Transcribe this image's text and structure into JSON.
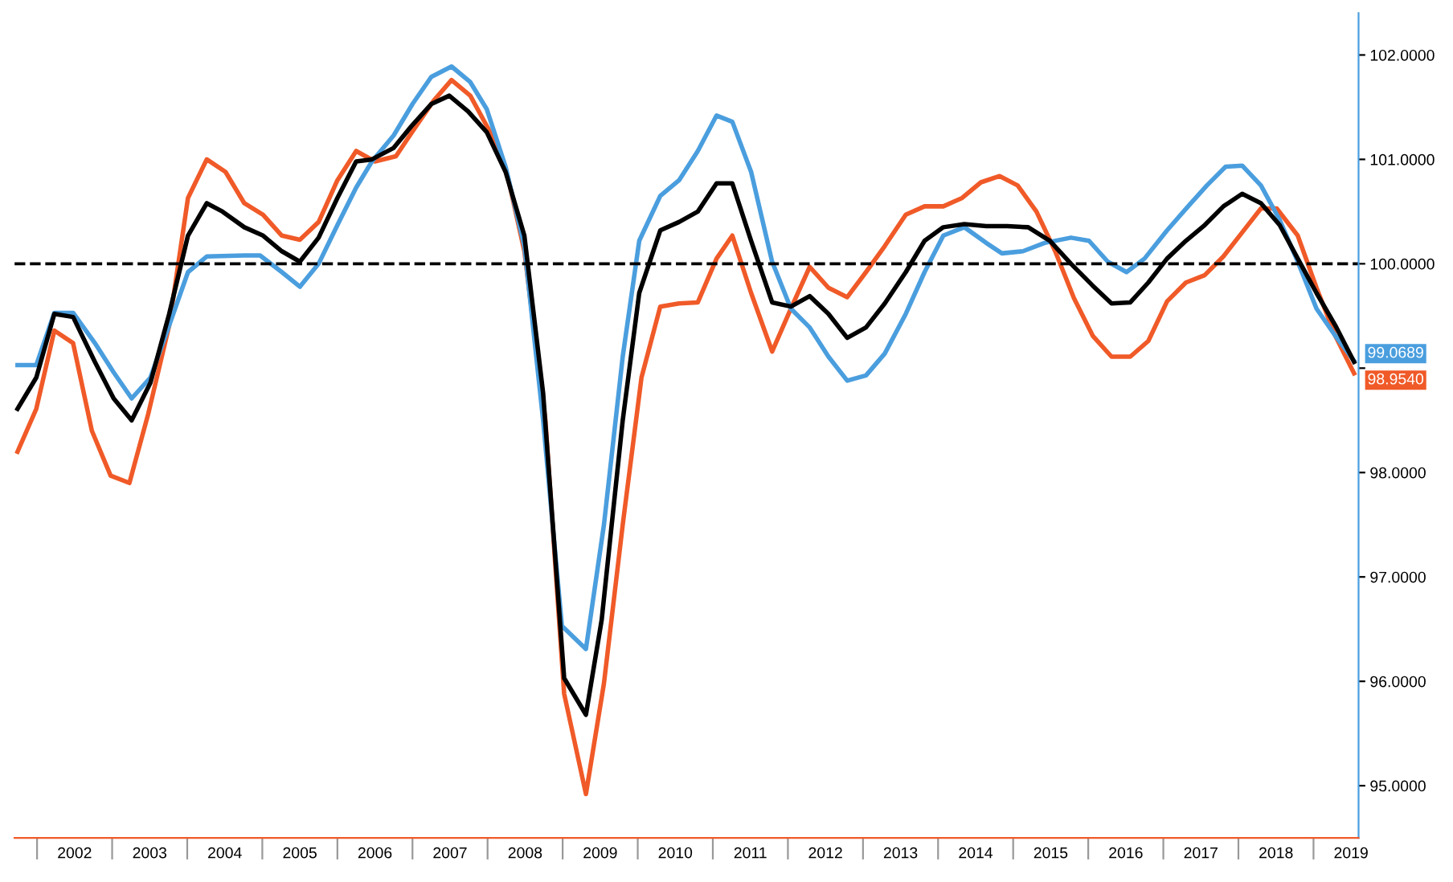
{
  "chart_data": {
    "type": "line",
    "xlim": [
      2001.7,
      2019.6
    ],
    "ylim": [
      94.5,
      102.4
    ],
    "xticks": [
      {
        "value": 2002,
        "label": null
      },
      {
        "value": 2002.5,
        "label": "2002"
      },
      {
        "value": 2003,
        "label": null
      },
      {
        "value": 2003.5,
        "label": "2003"
      },
      {
        "value": 2004,
        "label": null
      },
      {
        "value": 2004.5,
        "label": "2004"
      },
      {
        "value": 2005,
        "label": null
      },
      {
        "value": 2005.5,
        "label": "2005"
      },
      {
        "value": 2006,
        "label": null
      },
      {
        "value": 2006.5,
        "label": "2006"
      },
      {
        "value": 2007,
        "label": null
      },
      {
        "value": 2007.5,
        "label": "2007"
      },
      {
        "value": 2008,
        "label": null
      },
      {
        "value": 2008.5,
        "label": "2008"
      },
      {
        "value": 2009,
        "label": null
      },
      {
        "value": 2009.5,
        "label": "2009"
      },
      {
        "value": 2010,
        "label": null
      },
      {
        "value": 2010.5,
        "label": "2010"
      },
      {
        "value": 2011,
        "label": null
      },
      {
        "value": 2011.5,
        "label": "2011"
      },
      {
        "value": 2012,
        "label": null
      },
      {
        "value": 2012.5,
        "label": "2012"
      },
      {
        "value": 2013,
        "label": null
      },
      {
        "value": 2013.5,
        "label": "2013"
      },
      {
        "value": 2014,
        "label": null
      },
      {
        "value": 2014.5,
        "label": "2014"
      },
      {
        "value": 2015,
        "label": null
      },
      {
        "value": 2015.5,
        "label": "2015"
      },
      {
        "value": 2016,
        "label": null
      },
      {
        "value": 2016.5,
        "label": "2016"
      },
      {
        "value": 2017,
        "label": null
      },
      {
        "value": 2017.5,
        "label": "2017"
      },
      {
        "value": 2018,
        "label": null
      },
      {
        "value": 2018.5,
        "label": "2018"
      },
      {
        "value": 2019,
        "label": null
      },
      {
        "value": 2019.5,
        "label": "2019"
      }
    ],
    "yticks": [
      {
        "value": 95,
        "label": "95.0000"
      },
      {
        "value": 96,
        "label": "96.0000"
      },
      {
        "value": 97,
        "label": "97.0000"
      },
      {
        "value": 98,
        "label": "98.0000"
      },
      {
        "value": 99,
        "label": null
      },
      {
        "value": 100,
        "label": "100.0000"
      },
      {
        "value": 101,
        "label": "101.0000"
      },
      {
        "value": 102,
        "label": "102.0000"
      }
    ],
    "grid": false,
    "line_style": "solid",
    "marker": "none",
    "ref_lines": [
      {
        "axis": "y",
        "value": 100,
        "label": null,
        "color": "#000000",
        "line_style": "dashed"
      }
    ],
    "annotations": [
      {
        "text": "99.0689",
        "x": 2019.54,
        "y": 99.0689
      },
      {
        "text": "98.9540",
        "x": 2019.54,
        "y": 98.954
      }
    ],
    "series": [
      {
        "color": "#f05a28",
        "x": [
          2001.74,
          2001.99,
          2002.23,
          2002.48,
          2002.73,
          2002.98,
          2003.23,
          2003.48,
          2003.76,
          2004.01,
          2004.26,
          2004.51,
          2004.76,
          2005.01,
          2005.26,
          2005.5,
          2005.75,
          2006.0,
          2006.25,
          2006.5,
          2006.78,
          2007.04,
          2007.28,
          2007.52,
          2007.77,
          2008.02,
          2008.27,
          2008.49,
          2008.77,
          2009.02,
          2009.31,
          2009.55,
          2009.8,
          2010.05,
          2010.3,
          2010.55,
          2010.8,
          2011.05,
          2011.26,
          2011.51,
          2011.79,
          2012.04,
          2012.29,
          2012.54,
          2012.79,
          2013.04,
          2013.29,
          2013.57,
          2013.82,
          2014.07,
          2014.32,
          2014.57,
          2014.82,
          2015.06,
          2015.31,
          2015.56,
          2015.81,
          2016.06,
          2016.31,
          2016.56,
          2016.8,
          2017.05,
          2017.3,
          2017.55,
          2017.8,
          2018.05,
          2018.3,
          2018.51,
          2018.79,
          2019.04,
          2019.29,
          2019.54
        ],
        "values": [
          98.2,
          98.61,
          99.36,
          99.24,
          98.4,
          97.97,
          97.9,
          98.56,
          99.41,
          100.63,
          101.0,
          100.88,
          100.58,
          100.47,
          100.27,
          100.23,
          100.4,
          100.8,
          101.08,
          100.98,
          101.03,
          101.31,
          101.56,
          101.76,
          101.61,
          101.28,
          100.83,
          100.12,
          98.5,
          95.88,
          94.92,
          95.98,
          97.5,
          98.91,
          99.59,
          99.62,
          99.63,
          100.05,
          100.27,
          99.72,
          99.16,
          99.57,
          99.97,
          99.77,
          99.68,
          99.92,
          100.17,
          100.47,
          100.55,
          100.55,
          100.63,
          100.78,
          100.84,
          100.75,
          100.5,
          100.12,
          99.67,
          99.31,
          99.11,
          99.11,
          99.26,
          99.64,
          99.82,
          99.89,
          100.07,
          100.3,
          100.53,
          100.53,
          100.27,
          99.77,
          99.31,
          98.95
        ]
      },
      {
        "color": "#4a9ede",
        "x": [
          2001.74,
          2001.99,
          2002.23,
          2002.48,
          2002.77,
          2003.02,
          2003.26,
          2003.51,
          2003.76,
          2004.01,
          2004.26,
          2004.76,
          2004.97,
          2005.26,
          2005.5,
          2005.75,
          2006.0,
          2006.25,
          2006.46,
          2006.75,
          2007.0,
          2007.25,
          2007.52,
          2007.77,
          2007.99,
          2008.24,
          2008.49,
          2008.74,
          2008.99,
          2009.31,
          2009.55,
          2009.8,
          2010.02,
          2010.3,
          2010.55,
          2010.8,
          2011.05,
          2011.26,
          2011.51,
          2011.79,
          2012.04,
          2012.29,
          2012.54,
          2012.79,
          2013.04,
          2013.29,
          2013.57,
          2013.82,
          2014.07,
          2014.35,
          2014.64,
          2014.85,
          2015.13,
          2015.42,
          2015.77,
          2016.01,
          2016.26,
          2016.51,
          2016.75,
          2017.05,
          2017.33,
          2017.58,
          2017.83,
          2018.05,
          2018.3,
          2018.55,
          2018.79,
          2019.04,
          2019.29,
          2019.54
        ],
        "values": [
          99.03,
          99.03,
          99.53,
          99.53,
          99.24,
          98.96,
          98.71,
          98.91,
          99.41,
          99.92,
          100.07,
          100.08,
          100.08,
          99.92,
          99.78,
          100.0,
          100.37,
          100.73,
          100.98,
          101.23,
          101.53,
          101.79,
          101.89,
          101.74,
          101.48,
          100.93,
          100.17,
          98.5,
          96.53,
          96.31,
          97.5,
          99.11,
          100.22,
          100.65,
          100.8,
          101.08,
          101.42,
          101.36,
          100.88,
          100.02,
          99.57,
          99.39,
          99.11,
          98.88,
          98.93,
          99.14,
          99.52,
          99.92,
          100.27,
          100.35,
          100.2,
          100.1,
          100.12,
          100.2,
          100.25,
          100.22,
          100.02,
          99.92,
          100.05,
          100.32,
          100.55,
          100.75,
          100.93,
          100.94,
          100.75,
          100.42,
          100.02,
          99.57,
          99.31,
          99.07
        ]
      },
      {
        "color": "#000000",
        "x": [
          2001.74,
          2001.99,
          2002.23,
          2002.48,
          2002.77,
          2003.02,
          2003.26,
          2003.51,
          2003.76,
          2004.01,
          2004.26,
          2004.47,
          2004.76,
          2005.01,
          2005.26,
          2005.5,
          2005.75,
          2006.0,
          2006.25,
          2006.46,
          2006.75,
          2007.0,
          2007.25,
          2007.49,
          2007.74,
          2007.99,
          2008.24,
          2008.49,
          2008.74,
          2009.02,
          2009.31,
          2009.52,
          2009.8,
          2010.02,
          2010.3,
          2010.55,
          2010.8,
          2011.05,
          2011.26,
          2011.51,
          2011.79,
          2012.04,
          2012.29,
          2012.54,
          2012.79,
          2013.04,
          2013.29,
          2013.57,
          2013.82,
          2014.07,
          2014.35,
          2014.64,
          2014.92,
          2015.2,
          2015.49,
          2015.77,
          2016.06,
          2016.31,
          2016.56,
          2016.8,
          2017.05,
          2017.3,
          2017.55,
          2017.8,
          2018.05,
          2018.3,
          2018.55,
          2018.79,
          2019.04,
          2019.29,
          2019.54
        ],
        "values": [
          98.61,
          98.91,
          99.52,
          99.49,
          99.06,
          98.71,
          98.5,
          98.86,
          99.52,
          100.27,
          100.58,
          100.5,
          100.35,
          100.27,
          100.12,
          100.02,
          100.25,
          100.63,
          100.98,
          101.0,
          101.11,
          101.33,
          101.53,
          101.61,
          101.46,
          101.26,
          100.88,
          100.27,
          98.76,
          96.03,
          95.68,
          96.59,
          98.5,
          99.72,
          100.32,
          100.4,
          100.5,
          100.77,
          100.77,
          100.22,
          99.63,
          99.59,
          99.69,
          99.52,
          99.29,
          99.39,
          99.62,
          99.92,
          100.22,
          100.35,
          100.38,
          100.36,
          100.36,
          100.35,
          100.22,
          100.0,
          99.79,
          99.62,
          99.63,
          99.82,
          100.05,
          100.22,
          100.37,
          100.55,
          100.67,
          100.58,
          100.37,
          100.05,
          99.72,
          99.41,
          99.06
        ]
      }
    ]
  }
}
